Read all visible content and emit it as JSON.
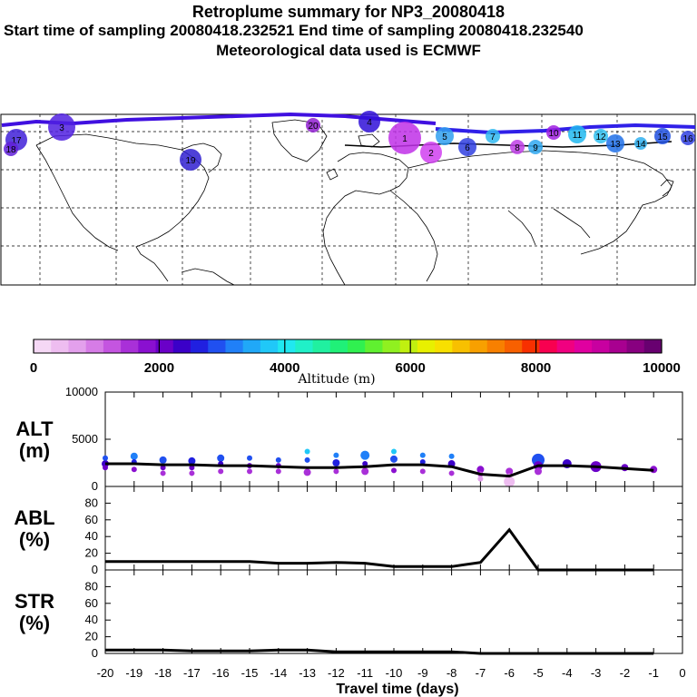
{
  "header": {
    "title": "Retroplume summary for NP3_20080418",
    "sampling": "Start time of sampling 20080418.232521     End time of sampling 20080418.232540",
    "met": "Meteorological data used is ECMWF"
  },
  "colorbar": {
    "title": "Altitude (m)",
    "ticks": [
      "0",
      "2000",
      "4000",
      "6000",
      "8000",
      "10000"
    ],
    "colors": [
      "#f5d8f5",
      "#eebdf0",
      "#e3a0ec",
      "#d67ce6",
      "#c455e0",
      "#a930d8",
      "#8a10d0",
      "#6a00c8",
      "#3b00c8",
      "#2020e0",
      "#2050f0",
      "#2080f8",
      "#20a8f8",
      "#20c8f8",
      "#20e8f0",
      "#20f0c8",
      "#20f0a0",
      "#20f078",
      "#30f050",
      "#60f030",
      "#90f020",
      "#c0f010",
      "#e8f000",
      "#f8e000",
      "#f8c000",
      "#f8a000",
      "#f88000",
      "#f86000",
      "#f83000",
      "#f80050",
      "#f00080",
      "#e000a0",
      "#c800a0",
      "#a80090",
      "#880080",
      "#680070"
    ]
  },
  "map_markers": [
    "1",
    "2",
    "3",
    "4",
    "5",
    "6",
    "7",
    "8",
    "9",
    "10",
    "11",
    "12",
    "13",
    "14",
    "15",
    "16",
    "17",
    "18",
    "19",
    "20"
  ],
  "chart_data": [
    {
      "type": "line",
      "name": "ALT",
      "ylabel": "ALT\n(m)",
      "ylim": [
        0,
        10000
      ],
      "yticks": [
        "0",
        "5000",
        "10000"
      ],
      "x": [
        -20,
        -19,
        -18,
        -17,
        -16,
        -15,
        -14,
        -13,
        -12,
        -11,
        -10,
        -9,
        -8,
        -7,
        -6,
        -5,
        -4,
        -3,
        -2,
        -1
      ],
      "values": [
        2400,
        2400,
        2300,
        2300,
        2200,
        2200,
        2100,
        2000,
        2000,
        2100,
        2300,
        2300,
        2100,
        1300,
        1100,
        2200,
        2200,
        2100,
        1900,
        1700
      ],
      "clusters": [
        {
          "x": -20,
          "alt": [
            2400,
            3000,
            2000
          ],
          "size": [
            3,
            2,
            2
          ]
        },
        {
          "x": -19,
          "alt": [
            3200,
            2600,
            1800
          ],
          "size": [
            3,
            2,
            2
          ]
        },
        {
          "x": -18,
          "alt": [
            2800,
            2000,
            1400
          ],
          "size": [
            3,
            2,
            2
          ]
        },
        {
          "x": -17,
          "alt": [
            2700,
            2000,
            1400
          ],
          "size": [
            3,
            2,
            2
          ]
        },
        {
          "x": -16,
          "alt": [
            3000,
            2400,
            1600
          ],
          "size": [
            3,
            2,
            2
          ]
        },
        {
          "x": -15,
          "alt": [
            3000,
            2200,
            1600
          ],
          "size": [
            2,
            2,
            2
          ]
        },
        {
          "x": -14,
          "alt": [
            2800,
            2200,
            1600
          ],
          "size": [
            2,
            2,
            2
          ]
        },
        {
          "x": -13,
          "alt": [
            3700,
            2800,
            1500
          ],
          "size": [
            2,
            2,
            3
          ]
        },
        {
          "x": -12,
          "alt": [
            3300,
            2500,
            1600
          ],
          "size": [
            2,
            3,
            2
          ]
        },
        {
          "x": -11,
          "alt": [
            3300,
            2400,
            1600
          ],
          "size": [
            4,
            2,
            3
          ]
        },
        {
          "x": -10,
          "alt": [
            3700,
            2900,
            1700
          ],
          "size": [
            2,
            3,
            2
          ]
        },
        {
          "x": -9,
          "alt": [
            3300,
            2600,
            1600
          ],
          "size": [
            2,
            2,
            2
          ]
        },
        {
          "x": -8,
          "alt": [
            3200,
            2400,
            1400
          ],
          "size": [
            2,
            3,
            2
          ]
        },
        {
          "x": -7,
          "alt": [
            1800,
            1300,
            800
          ],
          "size": [
            3,
            2,
            2
          ]
        },
        {
          "x": -6,
          "alt": [
            1600,
            1100,
            500
          ],
          "size": [
            3,
            2,
            5
          ]
        },
        {
          "x": -5,
          "alt": [
            2800,
            2200,
            1600
          ],
          "size": [
            6,
            4,
            3
          ]
        },
        {
          "x": -4,
          "alt": [
            2400
          ],
          "size": [
            4
          ]
        },
        {
          "x": -3,
          "alt": [
            2100
          ],
          "size": [
            5
          ]
        },
        {
          "x": -2,
          "alt": [
            2000
          ],
          "size": [
            3
          ]
        },
        {
          "x": -1,
          "alt": [
            1800
          ],
          "size": [
            3
          ]
        }
      ]
    },
    {
      "type": "line",
      "name": "ABL",
      "ylabel": "ABL\n(%)",
      "ylim": [
        0,
        100
      ],
      "yticks": [
        "0",
        "20",
        "40",
        "60",
        "80"
      ],
      "x": [
        -20,
        -19,
        -18,
        -17,
        -16,
        -15,
        -14,
        -13,
        -12,
        -11,
        -10,
        -9,
        -8,
        -7,
        -6,
        -5,
        -4,
        -3,
        -2,
        -1
      ],
      "values": [
        10,
        10,
        10,
        10,
        10,
        10,
        8,
        8,
        9,
        8,
        4,
        4,
        4,
        9,
        48,
        0,
        0,
        0,
        0,
        0
      ]
    },
    {
      "type": "line",
      "name": "STR",
      "ylabel": "STR\n(%)",
      "ylim": [
        0,
        100
      ],
      "yticks": [
        "0",
        "20",
        "40",
        "60",
        "80"
      ],
      "x": [
        -20,
        -19,
        -18,
        -17,
        -16,
        -15,
        -14,
        -13,
        -12,
        -11,
        -10,
        -9,
        -8,
        -7,
        -6,
        -5,
        -4,
        -3,
        -2,
        -1
      ],
      "values": [
        4,
        4,
        4,
        3,
        3,
        3,
        4,
        4,
        2,
        2,
        2,
        2,
        2,
        0,
        0,
        0,
        0,
        0,
        0,
        0
      ]
    }
  ],
  "xaxis": {
    "label": "Travel time (days)",
    "ticks": [
      "-20",
      "-19",
      "-18",
      "-17",
      "-16",
      "-15",
      "-14",
      "-13",
      "-12",
      "-11",
      "-10",
      "-9",
      "-8",
      "-7",
      "-6",
      "-5",
      "-4",
      "-3",
      "-2",
      "-1",
      "0"
    ]
  }
}
